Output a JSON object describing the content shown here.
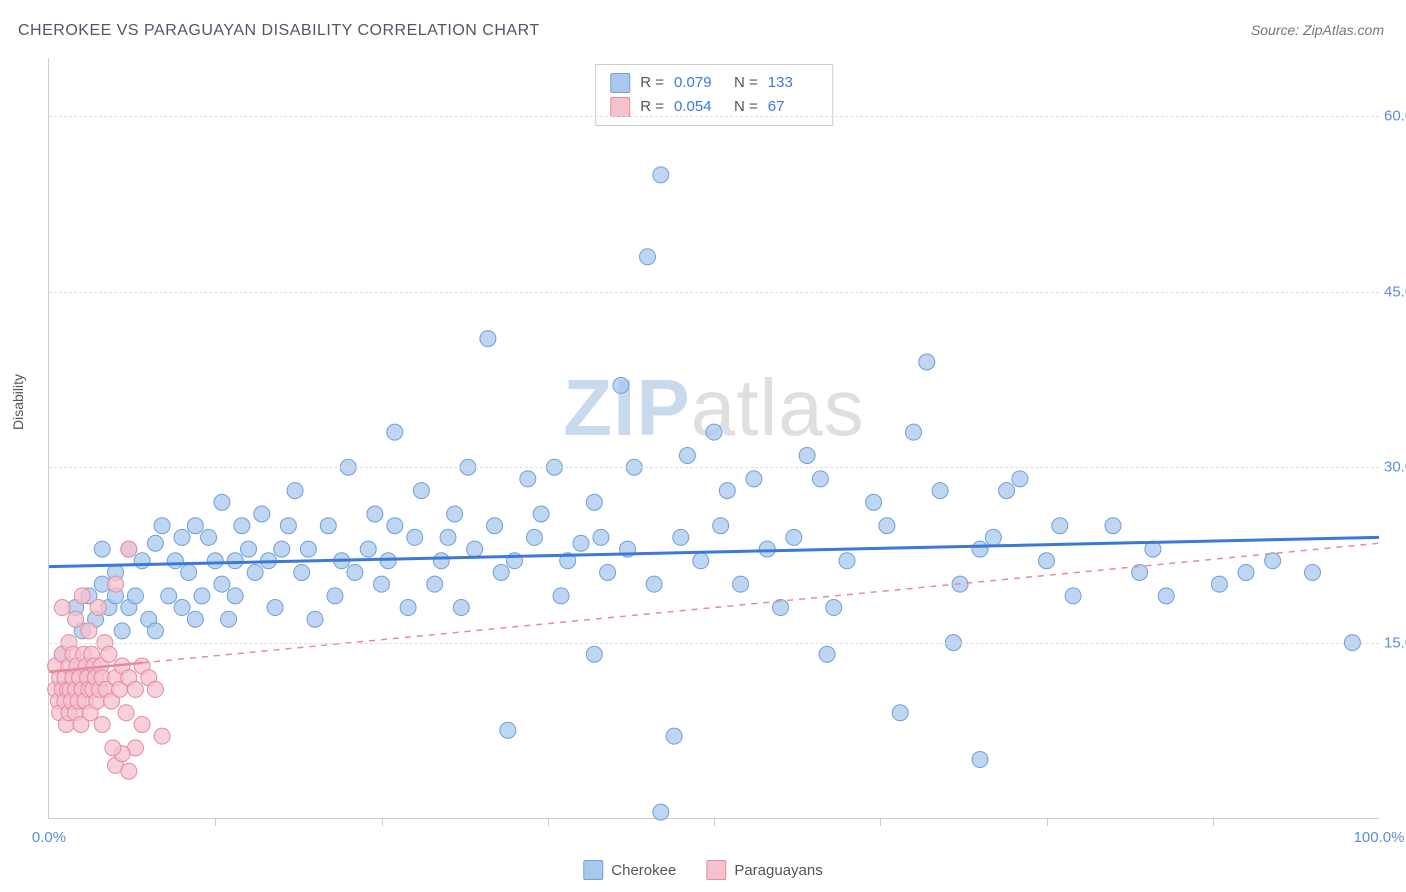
{
  "title": "CHEROKEE VS PARAGUAYAN DISABILITY CORRELATION CHART",
  "source": "Source: ZipAtlas.com",
  "ylabel": "Disability",
  "watermark_zip": "ZIP",
  "watermark_atlas": "atlas",
  "chart": {
    "type": "scatter",
    "xlim": [
      0,
      100
    ],
    "ylim": [
      0,
      65
    ],
    "x_start_label": "0.0%",
    "x_end_label": "100.0%",
    "x_tick_positions": [
      12.5,
      25,
      37.5,
      50,
      62.5,
      75,
      87.5
    ],
    "y_ticks": [
      {
        "v": 15,
        "label": "15.0%"
      },
      {
        "v": 30,
        "label": "30.0%"
      },
      {
        "v": 45,
        "label": "45.0%"
      },
      {
        "v": 60,
        "label": "60.0%"
      }
    ],
    "grid_color": "#dddddd",
    "background_color": "#ffffff",
    "series": [
      {
        "name": "Cherokee",
        "color": "#a8c8ec",
        "border": "#6fa0d8",
        "marker_radius": 8,
        "trend": {
          "y0": 21.5,
          "y1": 24.0,
          "dash": false,
          "color": "#3b78d8",
          "width": 3
        },
        "R": "0.079",
        "N": "133",
        "points": [
          [
            1,
            14
          ],
          [
            2,
            18
          ],
          [
            2.5,
            16
          ],
          [
            3,
            19
          ],
          [
            3,
            12
          ],
          [
            3.5,
            17
          ],
          [
            4,
            20
          ],
          [
            4,
            23
          ],
          [
            4.5,
            18
          ],
          [
            5,
            21
          ],
          [
            5,
            19
          ],
          [
            5.5,
            16
          ],
          [
            6,
            18
          ],
          [
            6,
            23
          ],
          [
            6.5,
            19
          ],
          [
            7,
            22
          ],
          [
            7.5,
            17
          ],
          [
            8,
            23.5
          ],
          [
            8,
            16
          ],
          [
            8.5,
            25
          ],
          [
            9,
            19
          ],
          [
            9.5,
            22
          ],
          [
            10,
            24
          ],
          [
            10,
            18
          ],
          [
            10.5,
            21
          ],
          [
            11,
            17
          ],
          [
            11,
            25
          ],
          [
            11.5,
            19
          ],
          [
            12,
            24
          ],
          [
            12.5,
            22
          ],
          [
            13,
            20
          ],
          [
            13,
            27
          ],
          [
            13.5,
            17
          ],
          [
            14,
            22
          ],
          [
            14,
            19
          ],
          [
            14.5,
            25
          ],
          [
            15,
            23
          ],
          [
            15.5,
            21
          ],
          [
            16,
            26
          ],
          [
            16.5,
            22
          ],
          [
            17,
            18
          ],
          [
            17.5,
            23
          ],
          [
            18,
            25
          ],
          [
            18.5,
            28
          ],
          [
            19,
            21
          ],
          [
            19.5,
            23
          ],
          [
            20,
            17
          ],
          [
            21,
            25
          ],
          [
            21.5,
            19
          ],
          [
            22,
            22
          ],
          [
            22.5,
            30
          ],
          [
            23,
            21
          ],
          [
            24,
            23
          ],
          [
            24.5,
            26
          ],
          [
            25,
            20
          ],
          [
            25.5,
            22
          ],
          [
            26,
            25
          ],
          [
            26,
            33
          ],
          [
            27,
            18
          ],
          [
            27.5,
            24
          ],
          [
            28,
            28
          ],
          [
            29,
            20
          ],
          [
            29.5,
            22
          ],
          [
            30,
            24
          ],
          [
            30.5,
            26
          ],
          [
            31,
            18
          ],
          [
            31.5,
            30
          ],
          [
            32,
            23
          ],
          [
            33,
            41
          ],
          [
            33.5,
            25
          ],
          [
            34,
            21
          ],
          [
            34.5,
            7.5
          ],
          [
            35,
            22
          ],
          [
            36,
            29
          ],
          [
            36.5,
            24
          ],
          [
            37,
            26
          ],
          [
            38,
            30
          ],
          [
            38.5,
            19
          ],
          [
            39,
            22
          ],
          [
            40,
            23.5
          ],
          [
            41,
            27
          ],
          [
            41,
            14
          ],
          [
            41.5,
            24
          ],
          [
            42,
            21
          ],
          [
            43,
            37
          ],
          [
            43.5,
            23
          ],
          [
            44,
            30
          ],
          [
            45,
            48
          ],
          [
            45.5,
            20
          ],
          [
            46,
            55
          ],
          [
            46,
            0.5
          ],
          [
            47,
            7
          ],
          [
            47.5,
            24
          ],
          [
            48,
            31
          ],
          [
            49,
            22
          ],
          [
            50,
            33
          ],
          [
            50.5,
            25
          ],
          [
            51,
            28
          ],
          [
            52,
            20
          ],
          [
            53,
            29
          ],
          [
            54,
            23
          ],
          [
            55,
            18
          ],
          [
            56,
            24
          ],
          [
            57,
            31
          ],
          [
            58,
            29
          ],
          [
            58.5,
            14
          ],
          [
            59,
            18
          ],
          [
            60,
            22
          ],
          [
            62,
            27
          ],
          [
            63,
            25
          ],
          [
            64,
            9
          ],
          [
            65,
            33
          ],
          [
            66,
            39
          ],
          [
            67,
            28
          ],
          [
            68,
            15
          ],
          [
            68.5,
            20
          ],
          [
            70,
            23
          ],
          [
            71,
            24
          ],
          [
            72,
            28
          ],
          [
            73,
            29
          ],
          [
            75,
            22
          ],
          [
            76,
            25
          ],
          [
            77,
            19
          ],
          [
            80,
            25
          ],
          [
            82,
            21
          ],
          [
            83,
            23
          ],
          [
            84,
            19
          ],
          [
            88,
            20
          ],
          [
            90,
            21
          ],
          [
            92,
            22
          ],
          [
            95,
            21
          ],
          [
            98,
            15
          ],
          [
            70,
            5
          ]
        ]
      },
      {
        "name": "Paraguayans",
        "color": "#f4c2cd",
        "border": "#e68aa0",
        "marker_radius": 8,
        "trend": {
          "y0": 12.5,
          "y1": 23.5,
          "dash": true,
          "color": "#e68aa0",
          "width": 1.5
        },
        "trend_solid_frac": 0.07,
        "R": "0.054",
        "N": "67",
        "points": [
          [
            0.5,
            11
          ],
          [
            0.5,
            13
          ],
          [
            0.7,
            10
          ],
          [
            0.8,
            12
          ],
          [
            0.8,
            9
          ],
          [
            1,
            14
          ],
          [
            1,
            11
          ],
          [
            1,
            18
          ],
          [
            1.2,
            10
          ],
          [
            1.2,
            12
          ],
          [
            1.3,
            8
          ],
          [
            1.4,
            11
          ],
          [
            1.5,
            13
          ],
          [
            1.5,
            9
          ],
          [
            1.5,
            15
          ],
          [
            1.6,
            11
          ],
          [
            1.7,
            10
          ],
          [
            1.8,
            14
          ],
          [
            1.8,
            12
          ],
          [
            2,
            11
          ],
          [
            2,
            17
          ],
          [
            2,
            9
          ],
          [
            2.1,
            13
          ],
          [
            2.2,
            10
          ],
          [
            2.3,
            12
          ],
          [
            2.4,
            8
          ],
          [
            2.5,
            11
          ],
          [
            2.5,
            19
          ],
          [
            2.6,
            14
          ],
          [
            2.7,
            10
          ],
          [
            2.8,
            13
          ],
          [
            2.9,
            12
          ],
          [
            3,
            11
          ],
          [
            3,
            16
          ],
          [
            3.1,
            9
          ],
          [
            3.2,
            14
          ],
          [
            3.3,
            11
          ],
          [
            3.4,
            13
          ],
          [
            3.5,
            12
          ],
          [
            3.6,
            10
          ],
          [
            3.7,
            18
          ],
          [
            3.8,
            11
          ],
          [
            3.9,
            13
          ],
          [
            4,
            12
          ],
          [
            4,
            8
          ],
          [
            4.2,
            15
          ],
          [
            4.3,
            11
          ],
          [
            4.5,
            14
          ],
          [
            4.7,
            10
          ],
          [
            5,
            20
          ],
          [
            5,
            12
          ],
          [
            5.3,
            11
          ],
          [
            5.5,
            13
          ],
          [
            5.8,
            9
          ],
          [
            6,
            12
          ],
          [
            6,
            23
          ],
          [
            6.5,
            11
          ],
          [
            6.5,
            6
          ],
          [
            7,
            13
          ],
          [
            7,
            8
          ],
          [
            7.5,
            12
          ],
          [
            8,
            11
          ],
          [
            8.5,
            7
          ],
          [
            5,
            4.5
          ],
          [
            5.5,
            5.5
          ],
          [
            6,
            4
          ],
          [
            4.8,
            6
          ]
        ]
      }
    ]
  },
  "legend": {
    "item1": "Cherokee",
    "item2": "Paraguayans"
  },
  "stats_box": {
    "r_label": "R =",
    "n_label": "N ="
  }
}
